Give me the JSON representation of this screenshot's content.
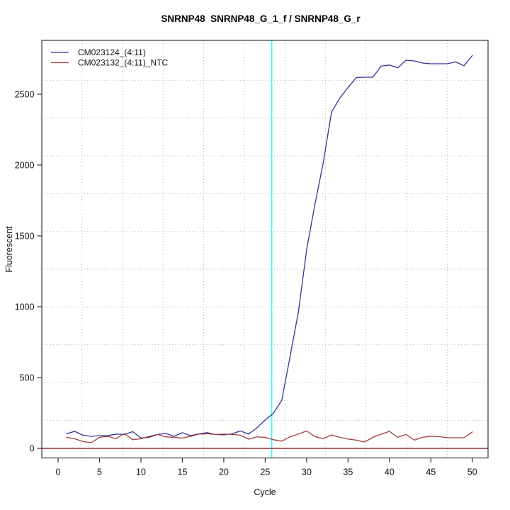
{
  "page": {
    "background": "#ffffff"
  },
  "chart_data": {
    "type": "line",
    "title": "SNRNP48  SNRNP48_G_1_f / SNRNP48_G_r",
    "xlabel": "Cycle",
    "ylabel": "Fluorescent",
    "xlim": [
      -1.97,
      51.9
    ],
    "ylim": [
      -67.5,
      2880
    ],
    "x_ticks": [
      0,
      5,
      10,
      15,
      20,
      25,
      30,
      35,
      40,
      45,
      50
    ],
    "y_ticks": [
      0,
      500,
      1000,
      1500,
      2000,
      2500
    ],
    "grid": {
      "color": "#b5b5b5",
      "style": "dotted",
      "x_positions": [
        2.88,
        7.78,
        12.68,
        17.57,
        22.47,
        27.37,
        32.26,
        37.16,
        42.06,
        46.96
      ],
      "y_positions": [
        198,
        465,
        732,
        998,
        1265,
        1532,
        1798,
        2065,
        2332,
        2598
      ]
    },
    "threshold_line": {
      "y": 0,
      "color": "#992b2b"
    },
    "ct_marker_line": {
      "x": 25.8,
      "color": "#00ffff"
    },
    "x": [
      1,
      2,
      3,
      4,
      5,
      6,
      7,
      8,
      9,
      10,
      11,
      12,
      13,
      14,
      15,
      16,
      17,
      18,
      19,
      20,
      21,
      22,
      23,
      24,
      25,
      26,
      27,
      28,
      29,
      30,
      31,
      32,
      33,
      34,
      35,
      36,
      37,
      38,
      39,
      40,
      41,
      42,
      43,
      44,
      45,
      46,
      47,
      48,
      49,
      50
    ],
    "series": [
      {
        "name": "CM023124_(4:11)",
        "color": "#32329b",
        "values": [
          103,
          120,
          93,
          85,
          90,
          90,
          101,
          98,
          118,
          73,
          78,
          98,
          106,
          85,
          111,
          90,
          103,
          111,
          98,
          95,
          103,
          123,
          101,
          145,
          201,
          248,
          340,
          648,
          961,
          1401,
          1723,
          2015,
          2373,
          2473,
          2548,
          2618,
          2620,
          2620,
          2698,
          2706,
          2686,
          2740,
          2735,
          2720,
          2715,
          2715,
          2715,
          2728,
          2701,
          2773
        ]
      },
      {
        "name": "CM023132_(4:11)_NTC",
        "color": "#a23c3c",
        "values": [
          78,
          68,
          48,
          40,
          78,
          85,
          68,
          105,
          61,
          68,
          85,
          98,
          81,
          78,
          73,
          85,
          101,
          103,
          98,
          101,
          98,
          93,
          65,
          81,
          78,
          61,
          51,
          81,
          101,
          123,
          83,
          68,
          95,
          78,
          66,
          58,
          45,
          78,
          100,
          120,
          78,
          98,
          58,
          78,
          86,
          83,
          75,
          75,
          75,
          116
        ]
      }
    ],
    "legend": {
      "position": "top-left"
    },
    "axis_color": "#333333"
  }
}
